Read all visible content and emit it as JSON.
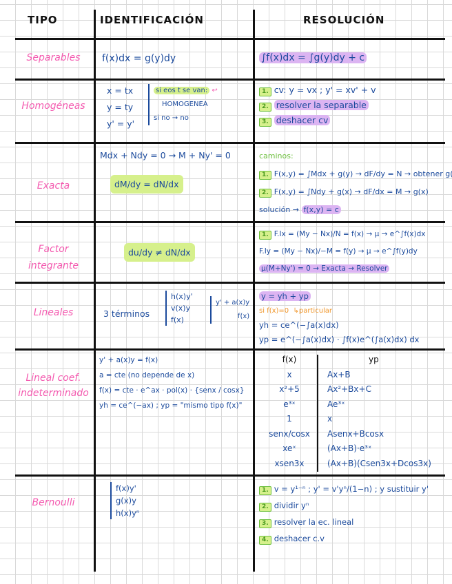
{
  "header": {
    "tipo": "TIPO",
    "identificacion": "IDENTIFICACIÓN",
    "resolucion": "RESOLUCIÓN"
  },
  "rows": [
    {
      "tipo": [
        "Separables"
      ],
      "ident": [
        "f(x)dx = g(y)dy"
      ],
      "resol": [
        "∫f(x)dx = ∫g(y)dy + c"
      ]
    },
    {
      "tipo": [
        "Homogéneas"
      ],
      "ident": [
        "x = tx",
        "y = ty",
        "y' = y'"
      ],
      "note": [
        "si eos t se van:",
        "HOMOGENEA",
        "si no → no"
      ],
      "resol": [
        {
          "n": "1.",
          "t": "cv:  y = vx ; y' = xv' + v"
        },
        {
          "n": "2.",
          "t": "resolver la separable"
        },
        {
          "n": "3.",
          "t": "deshacer cv"
        }
      ]
    },
    {
      "tipo": [
        "Exacta"
      ],
      "ident": [
        "Mdx + Ndy = 0 → M + Ny' = 0",
        "dM/dy = dN/dx"
      ],
      "resol_title": "caminos:",
      "resol": [
        {
          "n": "1.",
          "t": "F(x,y) = ∫Mdx + g(y) → dF/dy = N → obtener g(y)"
        },
        {
          "n": "2.",
          "t": "F(x,y) = ∫Ndy + g(x) → dF/dx = M → g(x)"
        }
      ],
      "solucion": "solución →",
      "solucion_eq": "f(x,y) = c"
    },
    {
      "tipo": [
        "Factor",
        "integrante"
      ],
      "ident": [
        "du/dy ≠ dN/dx"
      ],
      "resol": [
        {
          "n": "1.",
          "t": "F.Ix = (My − Nx)/N = f(x) → μ → e^∫f(x)dx"
        },
        {
          "n": "",
          "t": "F.Iy = (My − Nx)/−M = f(y) → μ → e^∫f(y)dy"
        }
      ],
      "final": "μ(M+Ny') = 0 → Exacta → Resolver"
    },
    {
      "tipo": [
        "Lineales"
      ],
      "ident_lead": "3 términos",
      "ident": [
        "h(x)y'",
        "v(x)y",
        "f(x)"
      ],
      "ident2": [
        "y' + a(x)y",
        "f(x)"
      ],
      "resol_head": "y = yh + yp",
      "si": "si f(x)=0",
      "particular": "particular",
      "resol": [
        "yh = ce^(−∫a(x)dx)",
        "yp = e^(−∫a(x)dx) · ∫f(x)e^(∫a(x)dx) dx"
      ]
    },
    {
      "tipo": [
        "Lineal coef.",
        "indeterminado"
      ],
      "ident": [
        "y' + a(x)y = f(x)",
        "a = cte (no depende de x)",
        "f(x) = cte · e^ax · pol(x) · {senx / cosx}",
        "yh = ce^(−ax) ; yp = \"mismo tipo f(x)\""
      ],
      "table": {
        "headers": [
          "f(x)",
          "yp"
        ],
        "rows": [
          [
            "x",
            "Ax+B"
          ],
          [
            "x²+5",
            "Ax²+Bx+C"
          ],
          [
            "e³ˣ",
            "Ae³ˣ"
          ],
          [
            "1",
            "x"
          ],
          [
            "senx/cosx",
            "Asenx+Bcosx"
          ],
          [
            "xeˣ",
            "(Ax+B)·e³ˣ"
          ],
          [
            "xsen3x",
            "(Ax+B)(Csen3x+Dcos3x)"
          ]
        ]
      }
    },
    {
      "tipo": [
        "Bernoulli"
      ],
      "ident": [
        "f(x)y'",
        "g(x)y",
        "h(x)yⁿ"
      ],
      "resol": [
        {
          "n": "1.",
          "t": "v = y¹⁻ⁿ ; y' = v'yⁿ/(1−n) ; y sustituir y'"
        },
        {
          "n": "2.",
          "t": "dividir yⁿ"
        },
        {
          "n": "3.",
          "t": "resolver la ec. lineal"
        },
        {
          "n": "4.",
          "t": "deshacer c.v"
        }
      ]
    }
  ],
  "colors": {
    "tipo": "#f45bb0",
    "ink": "#1b4a9c",
    "highlight_green": "#d6f08c",
    "highlight_purple": "#dcb4f2",
    "orange": "#f0962a",
    "step_icon": "#6cbf3c"
  }
}
